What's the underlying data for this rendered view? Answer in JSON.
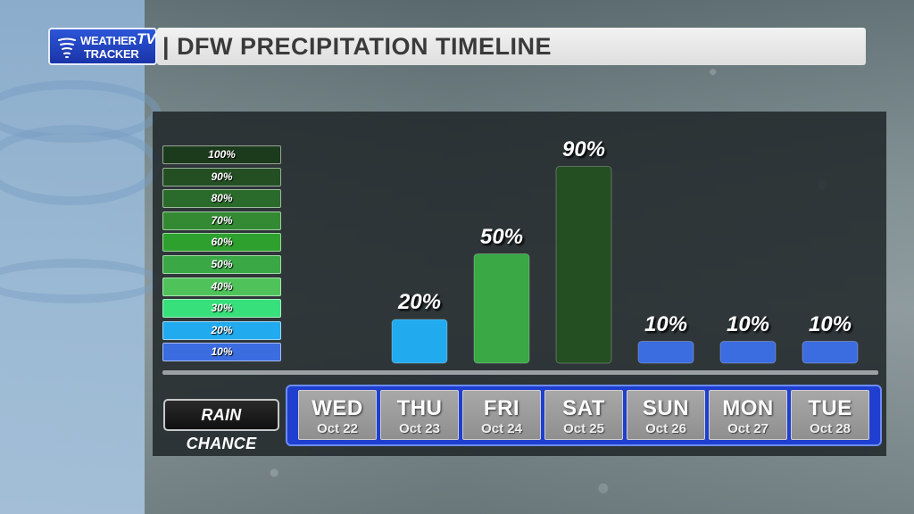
{
  "header": {
    "logo_line1": "WEATHER",
    "logo_line2": "TRACKER",
    "logo_tv": "TV",
    "title": "DFW PRECIPITATION TIMELINE"
  },
  "legend": {
    "items": [
      {
        "label": "100%",
        "color": "#1c3a1c"
      },
      {
        "label": "90%",
        "color": "#234f23"
      },
      {
        "label": "80%",
        "color": "#2a6a2a"
      },
      {
        "label": "70%",
        "color": "#338a33"
      },
      {
        "label": "60%",
        "color": "#2ea02e"
      },
      {
        "label": "50%",
        "color": "#39a845"
      },
      {
        "label": "40%",
        "color": "#4fc35a"
      },
      {
        "label": "30%",
        "color": "#37e07a"
      },
      {
        "label": "20%",
        "color": "#22aaee"
      },
      {
        "label": "10%",
        "color": "#3b6ce0"
      }
    ]
  },
  "row_label": "RAIN CHANCE",
  "chart_data": {
    "type": "bar",
    "categories": [
      "WED",
      "THU",
      "FRI",
      "SAT",
      "SUN",
      "MON",
      "TUE"
    ],
    "dates": [
      "Oct 22",
      "Oct 23",
      "Oct 24",
      "Oct 25",
      "Oct 26",
      "Oct 27",
      "Oct 28"
    ],
    "values": [
      null,
      20,
      50,
      90,
      10,
      10,
      10
    ],
    "value_labels": [
      "",
      "20%",
      "50%",
      "90%",
      "10%",
      "10%",
      "10%"
    ],
    "bar_colors": [
      "",
      "#22aaee",
      "#39a845",
      "#234f23",
      "#3b6ce0",
      "#3b6ce0",
      "#3b6ce0"
    ],
    "ylim": [
      0,
      100
    ],
    "unit": "%",
    "title": "DFW PRECIPITATION TIMELINE",
    "xlabel": "",
    "ylabel": ""
  }
}
